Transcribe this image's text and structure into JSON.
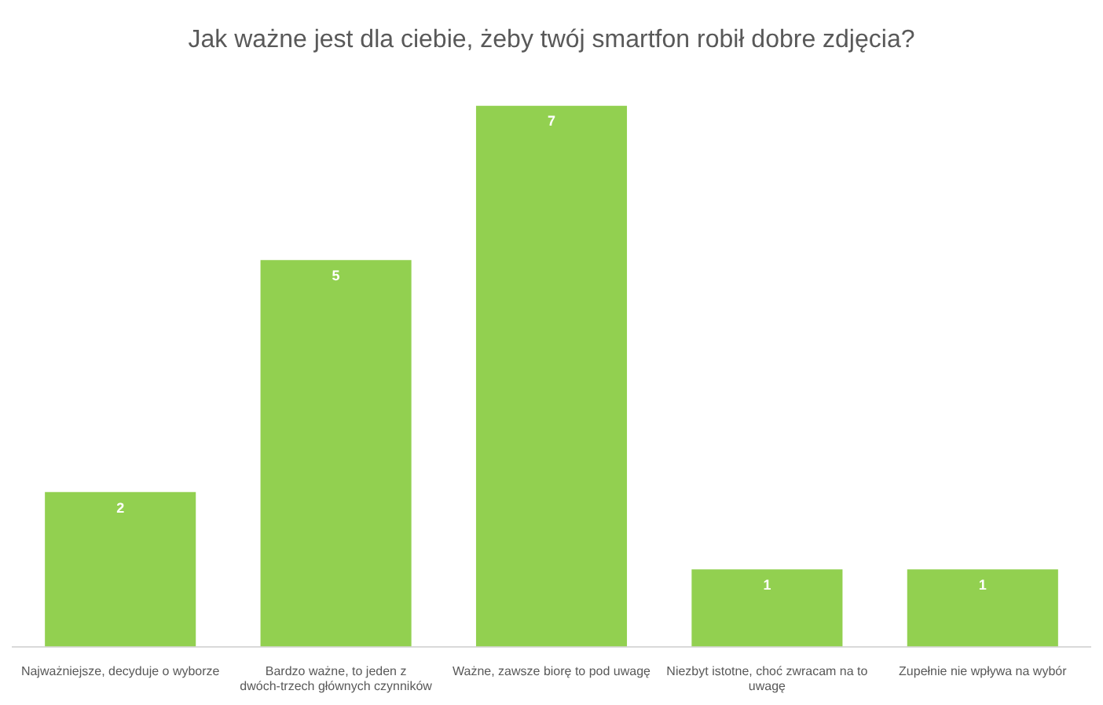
{
  "chart_data": {
    "type": "bar",
    "title": "Jak ważne jest dla ciebie, żeby twój smartfon robił dobre zdjęcia?",
    "categories": [
      "Najważniejsze, decyduje o wyborze",
      "Bardzo ważne, to jeden z dwóch-trzech głównych czynników",
      "Ważne, zawsze biorę to pod uwagę",
      "Niezbyt istotne, choć zwracam na to uwagę",
      "Zupełnie nie wpływa na wybór"
    ],
    "values": [
      2,
      5,
      7,
      1,
      1
    ],
    "color": "#92d050",
    "ylim": [
      0,
      7
    ],
    "data_labels": true,
    "legend": false
  }
}
